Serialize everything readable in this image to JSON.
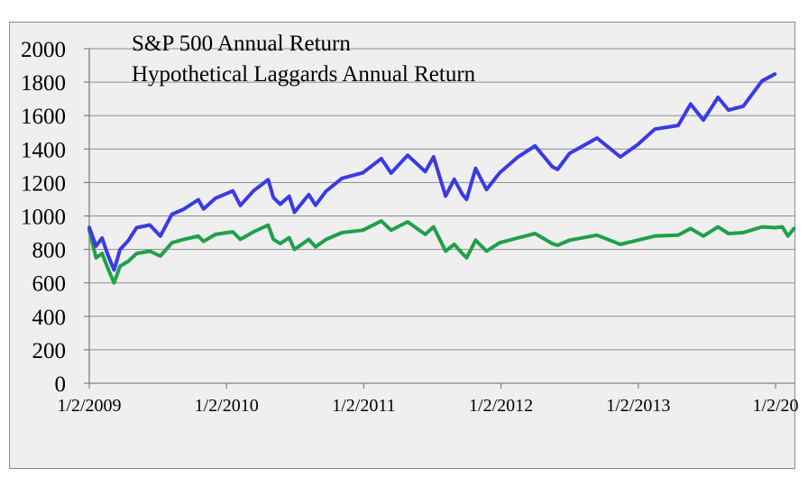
{
  "chart_data": {
    "type": "line",
    "title": "",
    "xlabel": "",
    "ylabel": "",
    "ylim": [
      0,
      2000
    ],
    "y_ticks": [
      "0",
      "200",
      "400",
      "600",
      "800",
      "1000",
      "1200",
      "1400",
      "1600",
      "1800",
      "2000"
    ],
    "x_ticks": [
      "1/2/2009",
      "1/2/2010",
      "1/2/2011",
      "1/2/2012",
      "1/2/2013",
      "1/2/20"
    ],
    "x_range": [
      "2009-01-02",
      "2014-02-28"
    ],
    "grid": "horizontal",
    "legend_position": "top-left",
    "series": [
      {
        "name": "S&P 500 Annual Return",
        "color": "#3a3ae6",
        "points": [
          [
            "2009-01-02",
            931
          ],
          [
            "2009-01-20",
            820
          ],
          [
            "2009-02-05",
            868
          ],
          [
            "2009-02-20",
            770
          ],
          [
            "2009-03-09",
            677
          ],
          [
            "2009-03-25",
            800
          ],
          [
            "2009-04-15",
            850
          ],
          [
            "2009-05-08",
            930
          ],
          [
            "2009-06-12",
            946
          ],
          [
            "2009-07-10",
            880
          ],
          [
            "2009-08-10",
            1010
          ],
          [
            "2009-09-10",
            1040
          ],
          [
            "2009-10-19",
            1097
          ],
          [
            "2009-11-02",
            1042
          ],
          [
            "2009-12-04",
            1106
          ],
          [
            "2010-01-19",
            1150
          ],
          [
            "2010-02-08",
            1063
          ],
          [
            "2010-03-15",
            1150
          ],
          [
            "2010-04-23",
            1217
          ],
          [
            "2010-05-07",
            1110
          ],
          [
            "2010-05-25",
            1070
          ],
          [
            "2010-06-18",
            1118
          ],
          [
            "2010-07-02",
            1022
          ],
          [
            "2010-08-09",
            1128
          ],
          [
            "2010-08-27",
            1064
          ],
          [
            "2010-09-24",
            1148
          ],
          [
            "2010-11-05",
            1225
          ],
          [
            "2010-12-31",
            1258
          ],
          [
            "2011-02-18",
            1343
          ],
          [
            "2011-03-16",
            1256
          ],
          [
            "2011-04-29",
            1363
          ],
          [
            "2011-06-15",
            1265
          ],
          [
            "2011-07-07",
            1353
          ],
          [
            "2011-08-08",
            1119
          ],
          [
            "2011-08-31",
            1219
          ],
          [
            "2011-09-22",
            1129
          ],
          [
            "2011-10-03",
            1099
          ],
          [
            "2011-10-27",
            1284
          ],
          [
            "2011-11-25",
            1158
          ],
          [
            "2011-12-30",
            1258
          ],
          [
            "2012-02-15",
            1350
          ],
          [
            "2012-04-02",
            1419
          ],
          [
            "2012-05-18",
            1295
          ],
          [
            "2012-06-01",
            1278
          ],
          [
            "2012-07-03",
            1374
          ],
          [
            "2012-09-14",
            1466
          ],
          [
            "2012-11-15",
            1353
          ],
          [
            "2012-12-31",
            1426
          ],
          [
            "2013-02-15",
            1519
          ],
          [
            "2013-04-18",
            1541
          ],
          [
            "2013-05-21",
            1669
          ],
          [
            "2013-06-24",
            1573
          ],
          [
            "2013-08-02",
            1709
          ],
          [
            "2013-08-30",
            1633
          ],
          [
            "2013-10-08",
            1656
          ],
          [
            "2013-11-27",
            1807
          ],
          [
            "2013-12-31",
            1848
          ]
        ]
      },
      {
        "name": "Hypothetical Laggards Annual Return",
        "color": "#1fa04a",
        "points": [
          [
            "2009-01-02",
            915
          ],
          [
            "2009-01-20",
            750
          ],
          [
            "2009-02-05",
            776
          ],
          [
            "2009-02-20",
            690
          ],
          [
            "2009-03-09",
            600
          ],
          [
            "2009-03-25",
            700
          ],
          [
            "2009-04-15",
            728
          ],
          [
            "2009-05-08",
            775
          ],
          [
            "2009-06-12",
            790
          ],
          [
            "2009-07-10",
            760
          ],
          [
            "2009-08-10",
            840
          ],
          [
            "2009-09-10",
            860
          ],
          [
            "2009-10-19",
            880
          ],
          [
            "2009-11-02",
            848
          ],
          [
            "2009-12-04",
            890
          ],
          [
            "2010-01-19",
            905
          ],
          [
            "2010-02-08",
            860
          ],
          [
            "2010-03-15",
            905
          ],
          [
            "2010-04-23",
            945
          ],
          [
            "2010-05-07",
            860
          ],
          [
            "2010-05-25",
            835
          ],
          [
            "2010-06-18",
            870
          ],
          [
            "2010-07-02",
            800
          ],
          [
            "2010-08-09",
            860
          ],
          [
            "2010-08-27",
            815
          ],
          [
            "2010-09-24",
            860
          ],
          [
            "2010-11-05",
            900
          ],
          [
            "2010-12-31",
            915
          ],
          [
            "2011-02-18",
            970
          ],
          [
            "2011-03-16",
            915
          ],
          [
            "2011-04-29",
            965
          ],
          [
            "2011-06-15",
            890
          ],
          [
            "2011-07-07",
            935
          ],
          [
            "2011-08-08",
            790
          ],
          [
            "2011-08-31",
            830
          ],
          [
            "2011-09-22",
            775
          ],
          [
            "2011-10-03",
            750
          ],
          [
            "2011-10-27",
            855
          ],
          [
            "2011-11-25",
            790
          ],
          [
            "2011-12-30",
            840
          ],
          [
            "2012-02-15",
            868
          ],
          [
            "2012-04-02",
            895
          ],
          [
            "2012-05-18",
            835
          ],
          [
            "2012-06-01",
            825
          ],
          [
            "2012-07-03",
            855
          ],
          [
            "2012-09-14",
            885
          ],
          [
            "2012-11-15",
            830
          ],
          [
            "2012-12-31",
            855
          ],
          [
            "2013-02-15",
            880
          ],
          [
            "2013-04-18",
            885
          ],
          [
            "2013-05-21",
            925
          ],
          [
            "2013-06-24",
            880
          ],
          [
            "2013-08-02",
            935
          ],
          [
            "2013-08-30",
            895
          ],
          [
            "2013-10-08",
            900
          ],
          [
            "2013-11-27",
            935
          ],
          [
            "2013-12-31",
            930
          ],
          [
            "2014-01-20",
            935
          ],
          [
            "2014-02-04",
            880
          ],
          [
            "2014-02-20",
            925
          ]
        ]
      }
    ]
  }
}
